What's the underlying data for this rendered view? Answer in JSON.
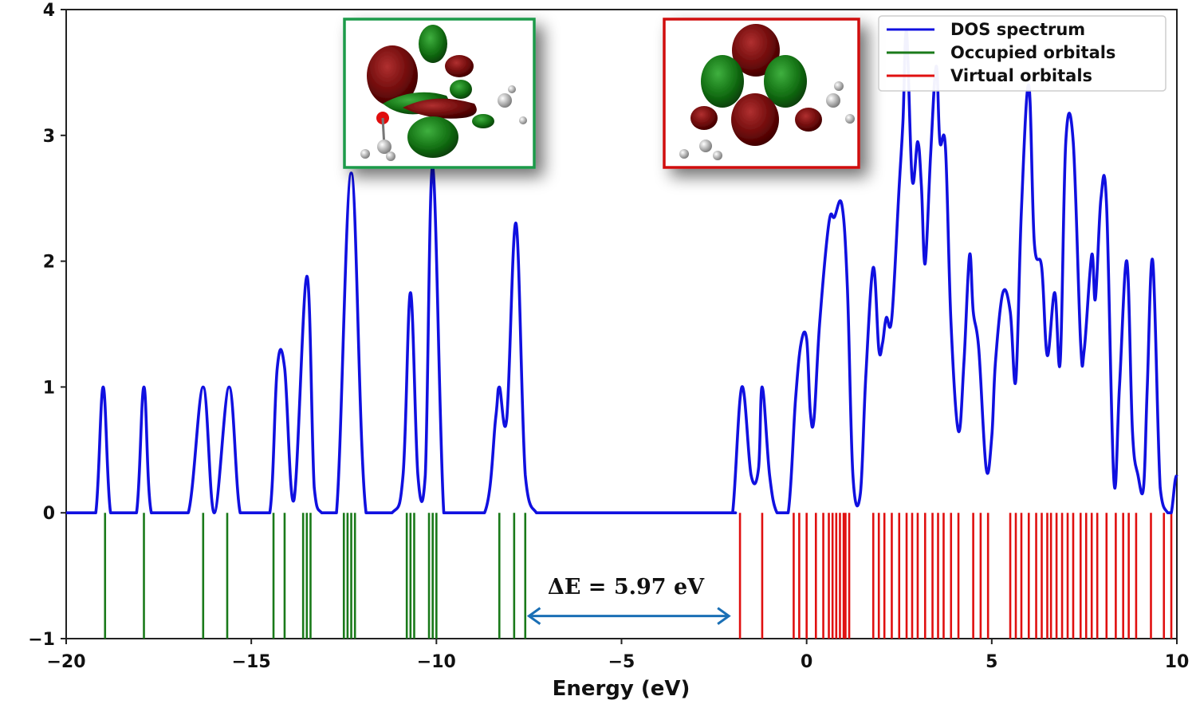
{
  "chart_data": {
    "type": "line",
    "xlabel": "Energy (eV)",
    "ylabel": "",
    "xlim": [
      -20,
      10
    ],
    "ylim": [
      -1,
      4
    ],
    "xticks": [
      -20,
      -15,
      -10,
      -5,
      0,
      5,
      10
    ],
    "xtick_labels": [
      "−20",
      "−15",
      "−10",
      "−5",
      "0",
      "5",
      "10"
    ],
    "yticks": [
      -1,
      0,
      1,
      2,
      3,
      4
    ],
    "ytick_labels": [
      "−1",
      "0",
      "1",
      "2",
      "3",
      "4"
    ],
    "grid": false,
    "legend_position": "top-right",
    "series": [
      {
        "name": "DOS spectrum",
        "color": "#1010e0",
        "x": [
          -20,
          -19.5,
          -19.2,
          -19.0,
          -18.8,
          -18.45,
          -18.1,
          -17.9,
          -17.7,
          -17.2,
          -16.7,
          -16.3,
          -16.0,
          -15.6,
          -15.3,
          -14.9,
          -14.5,
          -14.3,
          -14.1,
          -13.85,
          -13.5,
          -13.3,
          -13.1,
          -12.7,
          -12.3,
          -11.9,
          -11.2,
          -10.9,
          -10.7,
          -10.5,
          -10.3,
          -10.1,
          -9.8,
          -9.5,
          -8.7,
          -8.4,
          -8.3,
          -8.1,
          -7.85,
          -7.6,
          -7.3,
          -7.0,
          -5.0,
          -2.2,
          -2.0,
          -1.75,
          -1.5,
          -1.3,
          -1.2,
          -1.0,
          -0.8,
          -0.5,
          -0.3,
          -0.15,
          0.0,
          0.1,
          0.2,
          0.35,
          0.6,
          0.75,
          0.95,
          1.1,
          1.25,
          1.45,
          1.6,
          1.8,
          1.95,
          2.05,
          2.15,
          2.3,
          2.5,
          2.6,
          2.7,
          2.85,
          3.0,
          3.1,
          3.2,
          3.35,
          3.5,
          3.6,
          3.75,
          3.9,
          4.1,
          4.25,
          4.4,
          4.5,
          4.65,
          4.85,
          5.0,
          5.1,
          5.3,
          5.5,
          5.65,
          5.8,
          6.0,
          6.15,
          6.35,
          6.5,
          6.7,
          6.85,
          7.0,
          7.2,
          7.4,
          7.5,
          7.7,
          7.8,
          7.95,
          8.1,
          8.3,
          8.45,
          8.65,
          8.8,
          8.95,
          9.1,
          9.2,
          9.35,
          9.55,
          9.75,
          9.85,
          9.95,
          10.0
        ],
        "y": [
          0,
          0,
          0,
          1.0,
          0,
          0,
          0,
          1.0,
          0,
          0,
          0,
          1.0,
          0,
          1.0,
          0,
          0,
          0,
          1.15,
          1.15,
          0.1,
          1.88,
          0.2,
          0,
          0,
          2.7,
          0,
          0,
          0.3,
          1.75,
          0.3,
          0.3,
          2.75,
          0,
          0,
          0,
          0.75,
          1.0,
          0.75,
          2.3,
          0.3,
          0,
          0,
          0,
          0,
          0,
          1.0,
          0.3,
          0.35,
          1.0,
          0.3,
          0,
          0,
          0.9,
          1.35,
          1.38,
          0.8,
          0.75,
          1.5,
          2.3,
          2.35,
          2.45,
          1.8,
          0.3,
          0.15,
          1.1,
          1.95,
          1.3,
          1.35,
          1.55,
          1.55,
          2.6,
          3.1,
          3.82,
          2.65,
          2.95,
          2.6,
          1.98,
          2.85,
          3.55,
          2.95,
          2.9,
          1.5,
          0.65,
          1.2,
          2.05,
          1.6,
          1.3,
          0.35,
          0.6,
          1.2,
          1.75,
          1.6,
          1.05,
          2.4,
          3.4,
          2.15,
          1.95,
          1.25,
          1.75,
          1.2,
          2.95,
          2.95,
          1.35,
          1.3,
          2.05,
          1.7,
          2.5,
          2.45,
          0.25,
          1.0,
          2.0,
          0.65,
          0.3,
          0.2,
          1.0,
          2.0,
          0.2,
          0,
          0,
          0.25,
          0.3
        ],
        "x_note": ""
      },
      {
        "name": "Occupied orbitals",
        "color": "#1a7a1a",
        "x": [
          -18.95,
          -17.9,
          -16.3,
          -15.65,
          -14.4,
          -14.1,
          -13.6,
          -13.5,
          -13.4,
          -12.5,
          -12.4,
          -12.3,
          -12.2,
          -10.8,
          -10.7,
          -10.6,
          -10.2,
          -10.1,
          -10.0,
          -8.3,
          -7.9,
          -7.6
        ],
        "y_range": [
          -1,
          0
        ]
      },
      {
        "name": "Virtual orbitals",
        "color": "#e01010",
        "x": [
          -1.8,
          -1.2,
          -0.35,
          -0.2,
          0.0,
          0.25,
          0.45,
          0.6,
          0.7,
          0.8,
          0.9,
          1.0,
          1.05,
          1.15,
          1.8,
          1.95,
          2.1,
          2.3,
          2.5,
          2.7,
          2.85,
          3.0,
          3.2,
          3.4,
          3.55,
          3.7,
          3.9,
          4.1,
          4.5,
          4.7,
          4.9,
          5.5,
          5.65,
          5.8,
          6.0,
          6.2,
          6.35,
          6.5,
          6.6,
          6.75,
          6.9,
          7.05,
          7.2,
          7.4,
          7.55,
          7.7,
          7.85,
          8.1,
          8.35,
          8.55,
          8.7,
          8.9,
          9.3,
          9.65,
          9.85
        ],
        "y_range": [
          -1,
          0
        ]
      }
    ],
    "annotations": [
      {
        "text": "ΔE = 5.97 eV",
        "arrow_from": -7.5,
        "arrow_to": -2.1,
        "y": -0.82,
        "color": "#1a6fb5"
      }
    ],
    "insets": [
      {
        "name": "occupied-orbital-image",
        "border_color": "#1a9a4a"
      },
      {
        "name": "virtual-orbital-image",
        "border_color": "#d01010"
      }
    ]
  }
}
